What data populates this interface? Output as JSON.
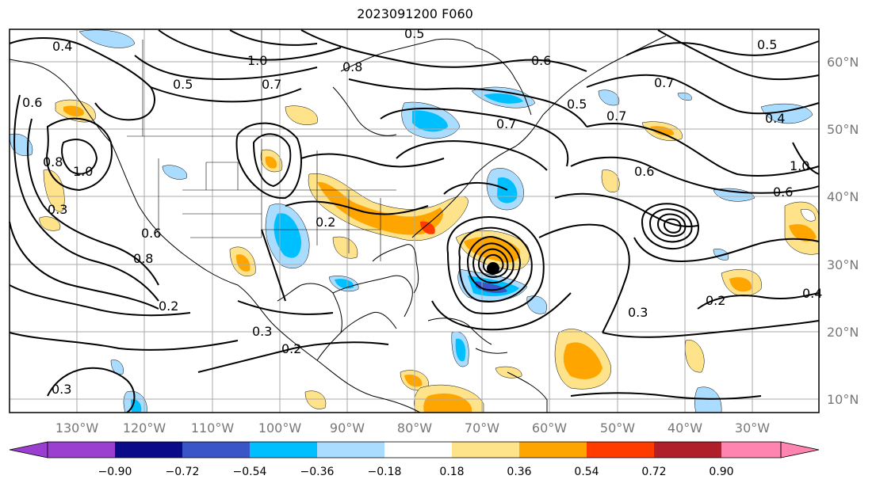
{
  "title": "2023091200 F060",
  "lon_labels": [
    "130°W",
    "120°W",
    "110°W",
    "100°W",
    "90°W",
    "80°W",
    "70°W",
    "60°W",
    "50°W",
    "40°W",
    "30°W"
  ],
  "lat_labels": [
    "60°N",
    "50°N",
    "40°N",
    "30°N",
    "20°N",
    "10°N"
  ],
  "contour_labels": [
    "0.4",
    "0.6",
    "0.8",
    "1.0",
    "0.5",
    "0.7",
    "1.0",
    "0.8",
    "0.6",
    "0.5",
    "0.7",
    "0.5",
    "0.7",
    "0.5",
    "0.4",
    "0.6",
    "0.7",
    "0.6",
    "0.2",
    "0.3",
    "0.2",
    "0.3",
    "0.2",
    "0.4",
    "0.8",
    "0.6",
    "1.0",
    "0.3",
    "0.2",
    "0.3"
  ],
  "colorbar": {
    "ticks": [
      "−0.90",
      "−0.72",
      "−0.54",
      "−0.36",
      "−0.18",
      "0.18",
      "0.36",
      "0.54",
      "0.72",
      "0.90"
    ],
    "colors": [
      "#9b3fd1",
      "#0b0b8a",
      "#3a55c8",
      "#00bfff",
      "#aadcff",
      "#ffffff",
      "#ffe38a",
      "#ffa500",
      "#ff3b00",
      "#b0202a",
      "#ff85b0"
    ]
  }
}
